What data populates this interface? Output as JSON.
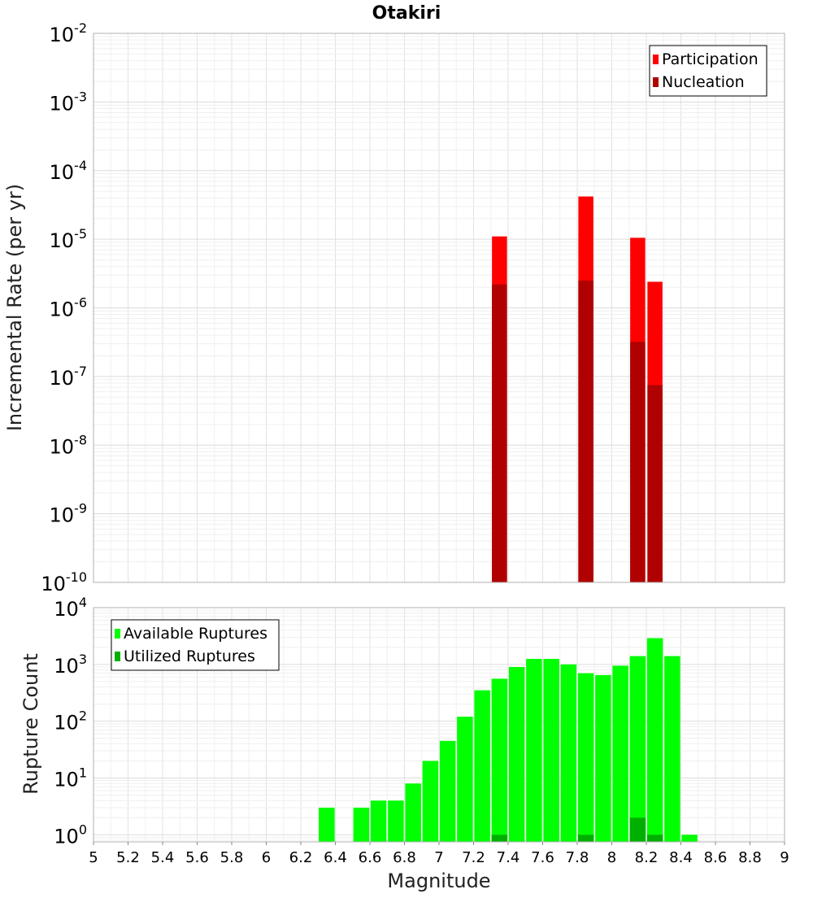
{
  "chart_data": [
    {
      "type": "bar",
      "title": "Otakiri",
      "xlabel": "",
      "ylabel": "Incremental Rate (per yr)",
      "yscale": "log",
      "xlim": [
        5,
        9
      ],
      "ylim": [
        1e-10,
        0.01
      ],
      "y_tick_exponents": [
        -10,
        -9,
        -8,
        -7,
        -6,
        -5,
        -4,
        -3,
        -2
      ],
      "grid": true,
      "legend_position": "top-right",
      "series": [
        {
          "name": "Participation",
          "color": "#ff0000",
          "x": [
            7.35,
            7.85,
            8.15,
            8.25
          ],
          "values": [
            1.1e-05,
            4.2e-05,
            1.05e-05,
            2.4e-06
          ]
        },
        {
          "name": "Nucleation",
          "color": "#b00000",
          "x": [
            7.35,
            7.85,
            8.15,
            8.25
          ],
          "values": [
            2.2e-06,
            2.5e-06,
            3.2e-07,
            7.5e-08
          ]
        }
      ]
    },
    {
      "type": "bar",
      "title": "",
      "xlabel": "Magnitude",
      "ylabel": "Rupture Count",
      "yscale": "log",
      "xlim": [
        5,
        9
      ],
      "ylim": [
        0.75,
        10000
      ],
      "x_ticks": [
        "5",
        "5.2",
        "5.4",
        "5.6",
        "5.8",
        "6",
        "6.2",
        "6.4",
        "6.6",
        "6.8",
        "7",
        "7.2",
        "7.4",
        "7.6",
        "7.8",
        "8",
        "8.2",
        "8.4",
        "8.6",
        "8.8",
        "9"
      ],
      "y_tick_exponents": [
        0,
        1,
        2,
        3,
        4
      ],
      "grid": true,
      "legend_position": "top-left",
      "series": [
        {
          "name": "Available Ruptures",
          "color": "#00ff00",
          "x": [
            6.35,
            6.55,
            6.65,
            6.75,
            6.85,
            6.95,
            7.05,
            7.15,
            7.25,
            7.35,
            7.45,
            7.55,
            7.65,
            7.75,
            7.85,
            7.95,
            8.05,
            8.15,
            8.25,
            8.35,
            8.45
          ],
          "values": [
            3,
            3,
            4,
            4,
            8,
            20,
            45,
            120,
            350,
            560,
            900,
            1250,
            1250,
            1000,
            700,
            650,
            950,
            1400,
            2900,
            1400,
            1
          ]
        },
        {
          "name": "Utilized Ruptures",
          "color": "#00b000",
          "x": [
            7.35,
            7.85,
            8.15,
            8.25
          ],
          "values": [
            1,
            1,
            2,
            1
          ]
        }
      ]
    }
  ]
}
